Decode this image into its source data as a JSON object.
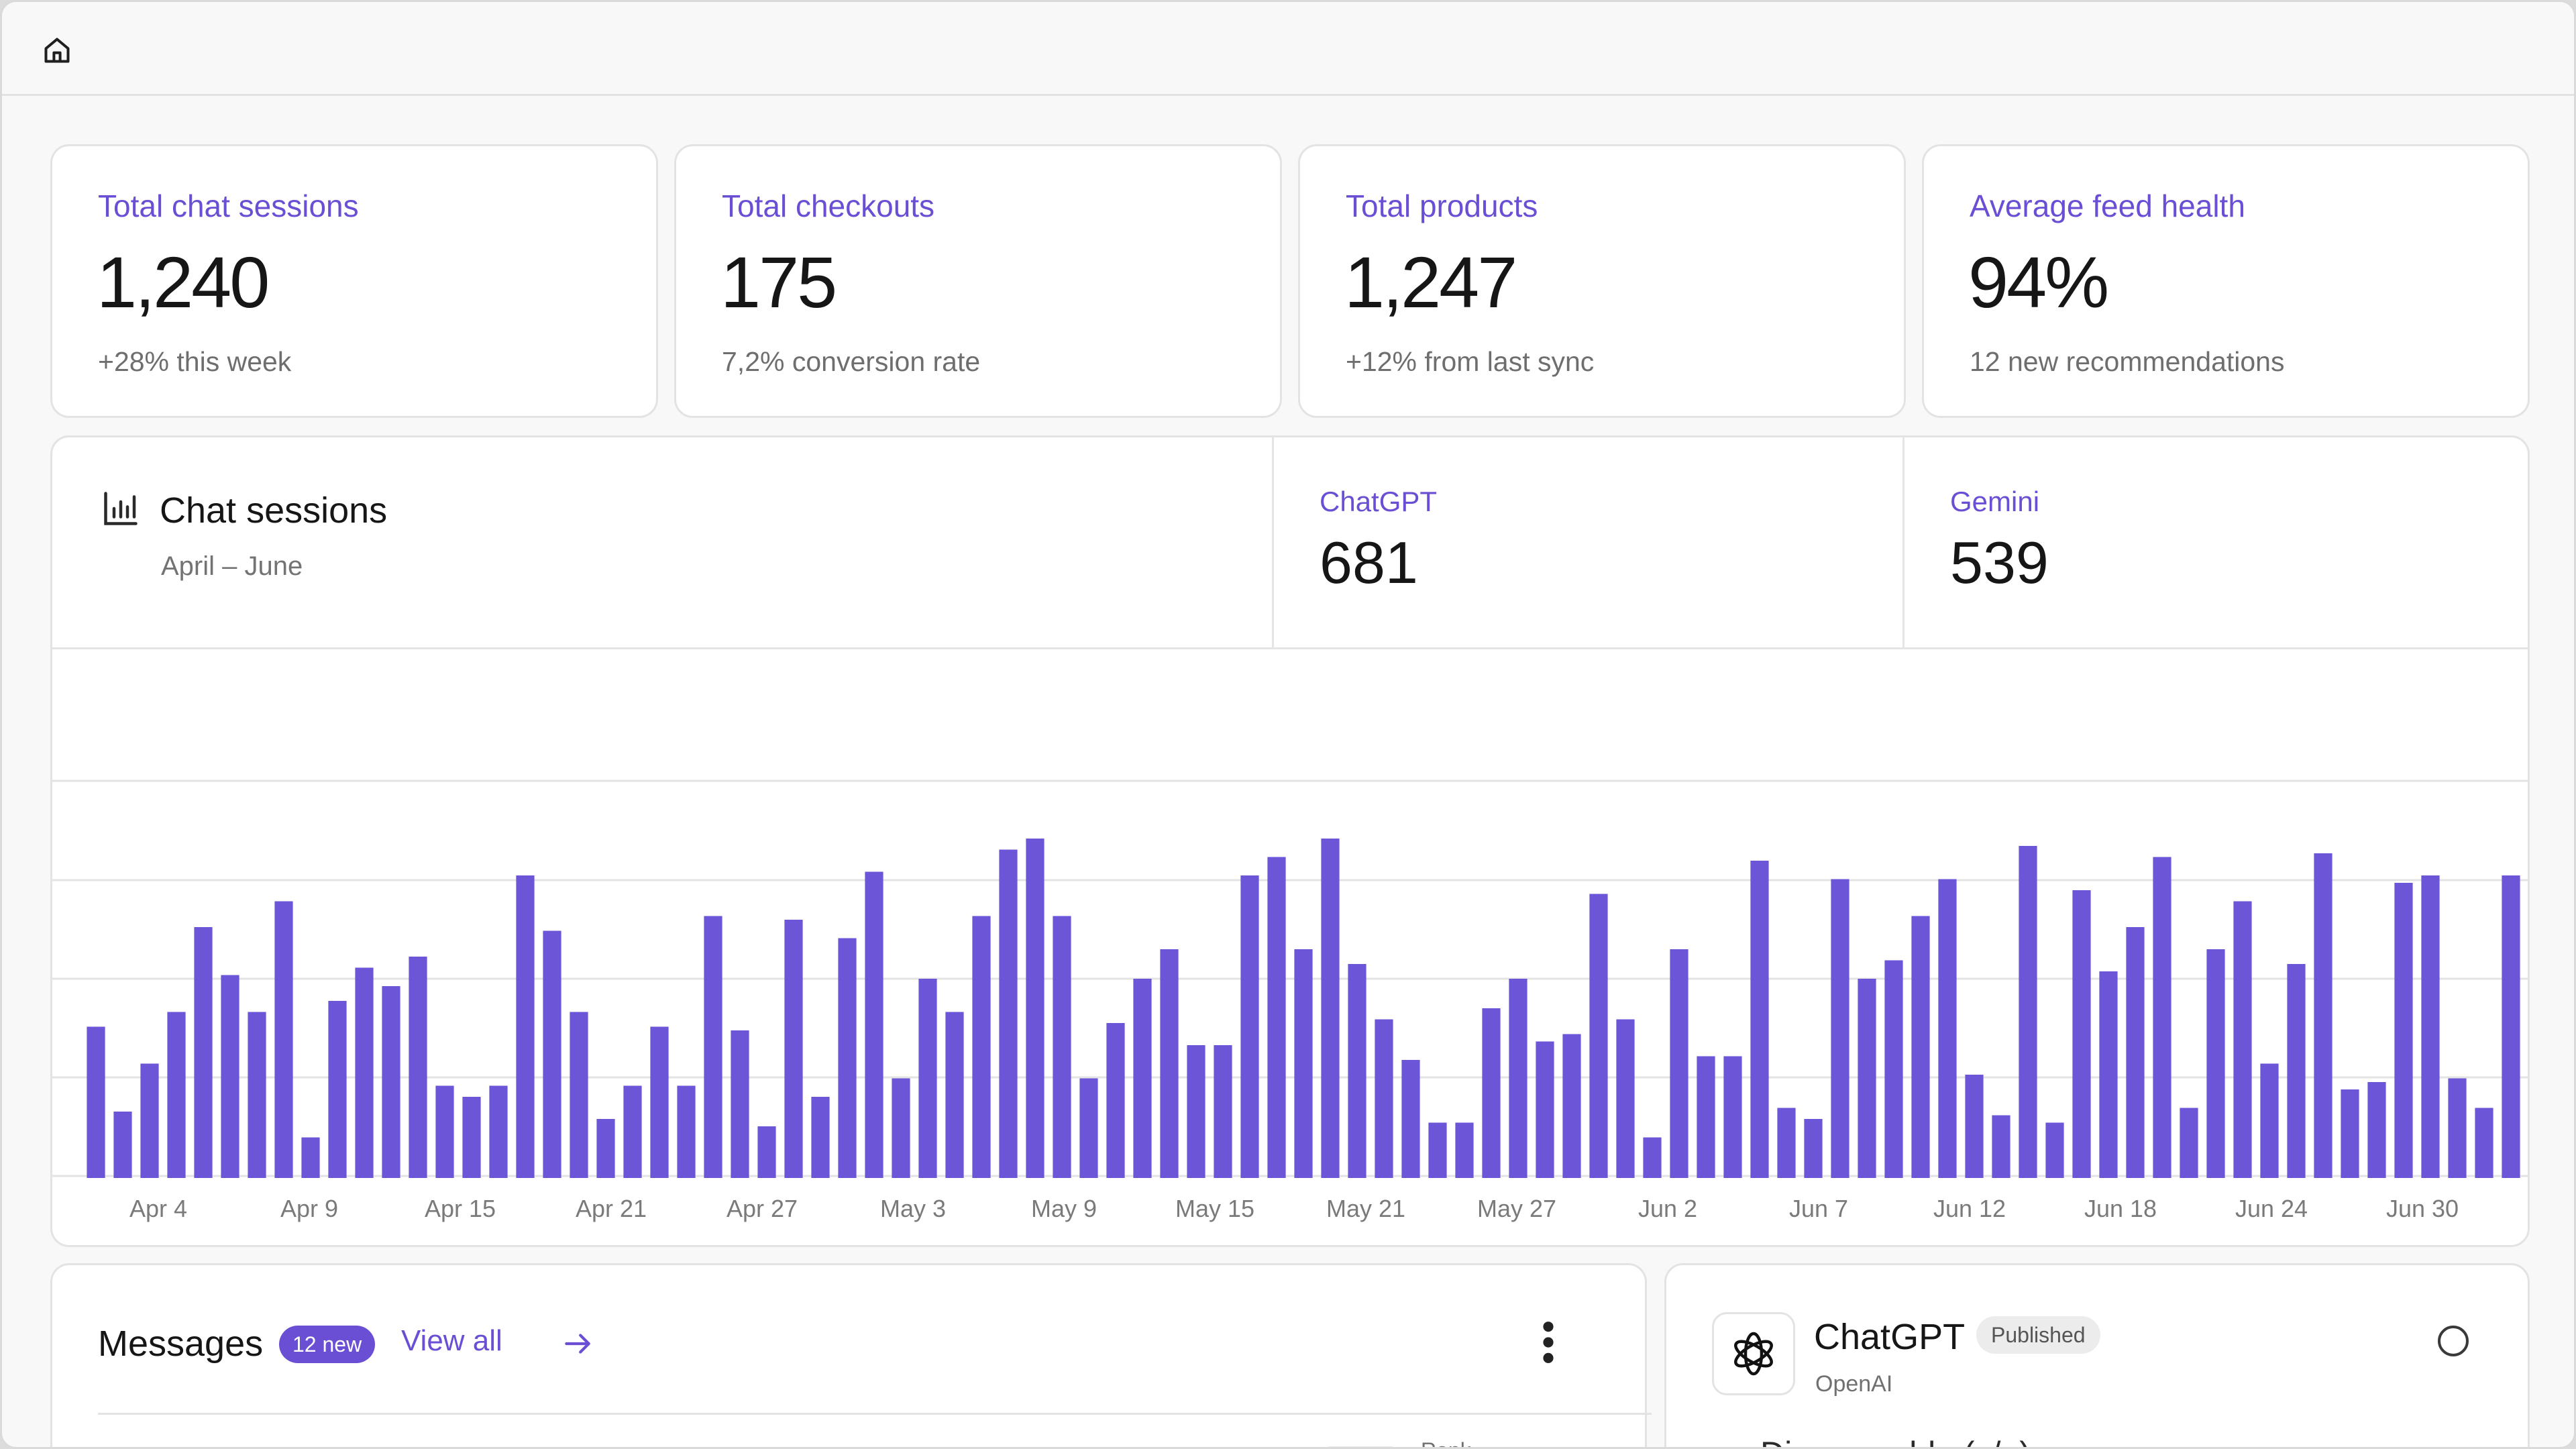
{
  "topbar": {
    "icon": "home-icon"
  },
  "stats": [
    {
      "label": "Total chat sessions",
      "value": "1,240",
      "sub": "+28% this week"
    },
    {
      "label": "Total checkouts",
      "value": "175",
      "sub": "7,2% conversion rate"
    },
    {
      "label": "Total products",
      "value": "1,247",
      "sub": "+12% from last sync"
    },
    {
      "label": "Average feed health",
      "value": "94%",
      "sub": "12 new recommendations"
    }
  ],
  "chart_section": {
    "title": "Chat sessions",
    "range": "April – June",
    "icon": "bar-chart-icon",
    "series_summary": [
      {
        "name": "ChatGPT",
        "value": "681"
      },
      {
        "name": "Gemini",
        "value": "539"
      }
    ]
  },
  "chart_data": {
    "type": "bar",
    "grid": true,
    "ylim": [
      0,
      100
    ],
    "xticks": [
      "Apr 4",
      "Apr 9",
      "Apr 15",
      "Apr 21",
      "Apr 27",
      "May 3",
      "May 9",
      "May 15",
      "May 21",
      "May 27",
      "Jun 2",
      "Jun 7",
      "Jun 12",
      "Jun 18",
      "Jun 24",
      "Jun 30"
    ],
    "values": [
      41,
      18,
      31,
      45,
      68,
      55,
      45,
      75,
      11,
      48,
      57,
      52,
      60,
      25,
      22,
      25,
      82,
      67,
      45,
      16,
      25,
      41,
      25,
      71,
      40,
      14,
      70,
      22,
      65,
      83,
      27,
      54,
      45,
      71,
      89,
      92,
      71,
      27,
      42,
      54,
      62,
      36,
      36,
      82,
      87,
      62,
      92,
      58,
      43,
      32,
      15,
      15,
      46,
      54,
      37,
      39,
      77,
      43,
      11,
      62,
      33,
      33,
      86,
      19,
      16,
      81,
      54,
      59,
      71,
      81,
      28,
      17,
      90,
      15,
      78,
      56,
      68,
      87,
      19,
      62,
      75,
      31,
      58,
      88,
      24,
      26,
      80,
      82,
      27,
      19,
      82
    ]
  },
  "messages": {
    "title": "Messages",
    "badge": "12 new",
    "view_all": "View all",
    "col_label": "Rank"
  },
  "agent": {
    "name": "ChatGPT",
    "status": "Published",
    "vendor": "OpenAI",
    "row_label": "Discoverable (y/n)"
  },
  "colors": {
    "accent": "#6a4ed4",
    "bar": "#6d55d8"
  }
}
